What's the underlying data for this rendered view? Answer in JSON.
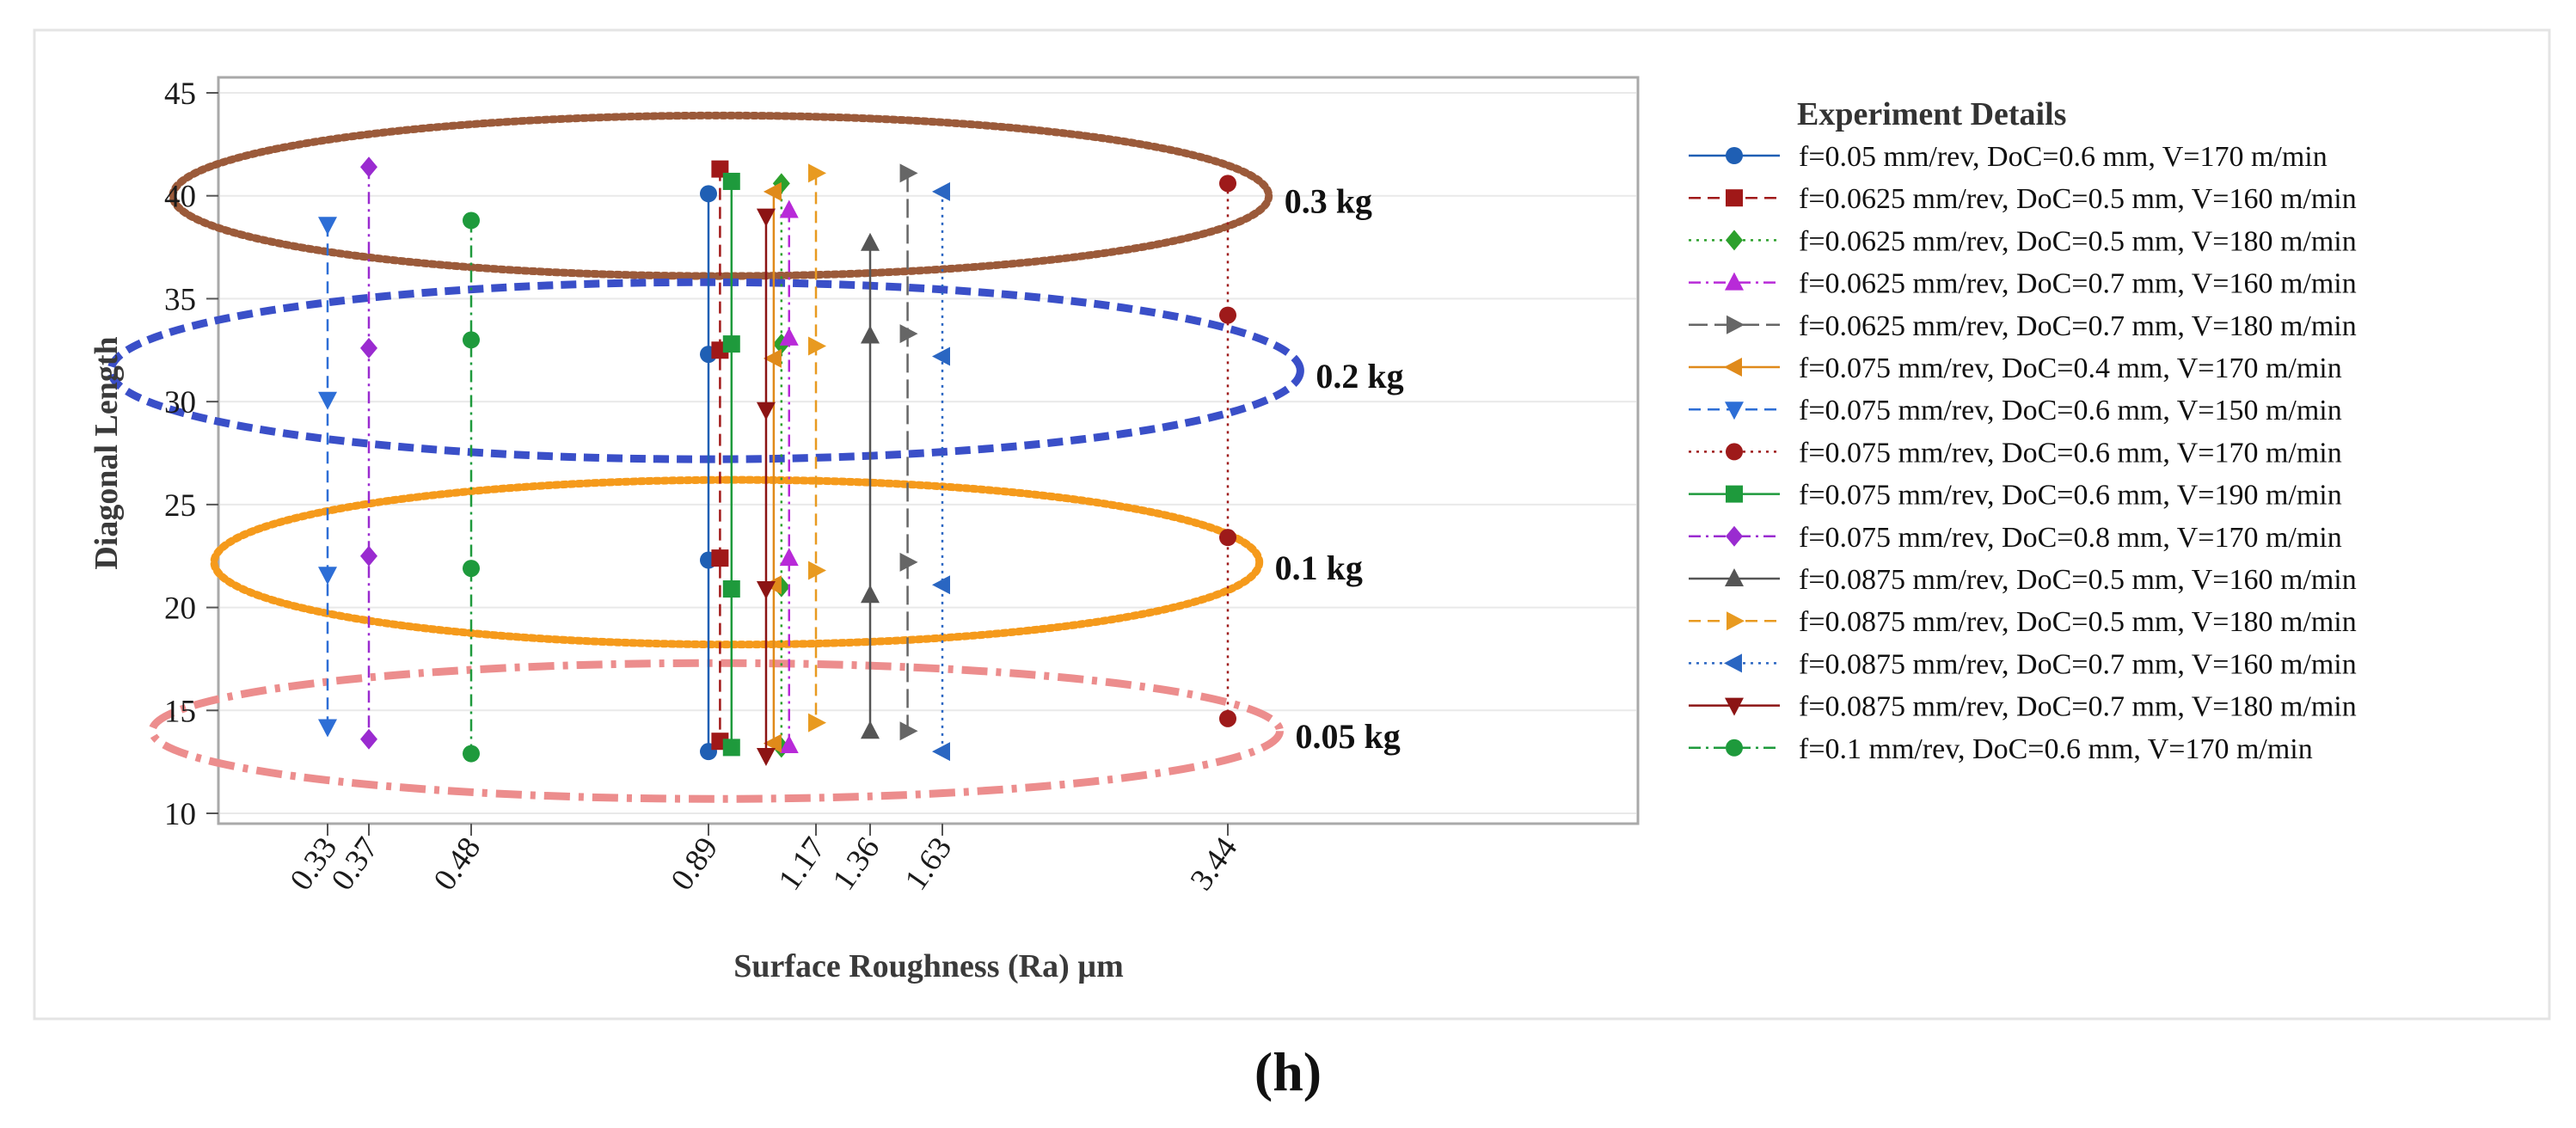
{
  "caption": "(h)",
  "chart_data": {
    "type": "scatter",
    "xlabel": "Surface Roughness (Ra) µm",
    "ylabel": "Diagonal Length",
    "ylim": [
      10,
      45
    ],
    "yticks": [
      10,
      15,
      20,
      25,
      30,
      35,
      40,
      45
    ],
    "xticks": [
      0.33,
      0.37,
      0.48,
      0.89,
      1.17,
      1.36,
      1.63,
      3.44
    ],
    "grid": true,
    "legend": {
      "title": "Experiment Details",
      "placement": "right"
    },
    "series": [
      {
        "name": "f=0.05 mm/rev, DoC=0.6 mm, V=170 m/min",
        "color": "#1f5fb4",
        "marker": "circle",
        "dash": "solid",
        "x": 0.89,
        "values": [
          13.0,
          22.3,
          32.3,
          40.1
        ]
      },
      {
        "name": "f=0.0625 mm/rev, DoC=0.5 mm, V=160 m/min",
        "color": "#a01818",
        "marker": "square",
        "dash": "dash",
        "x": 0.92,
        "values": [
          13.5,
          22.4,
          32.5,
          41.3
        ]
      },
      {
        "name": "f=0.0625 mm/rev, DoC=0.5 mm, V=180 m/min",
        "color": "#2ca02c",
        "marker": "diamond",
        "dash": "dot",
        "x": 1.08,
        "values": [
          13.2,
          21.0,
          32.8,
          40.6
        ]
      },
      {
        "name": "f=0.0625 mm/rev, DoC=0.7 mm, V=160 m/min",
        "color": "#b82ad8",
        "marker": "triangle-up",
        "dash": "dashdot",
        "x": 1.1,
        "values": [
          13.3,
          22.4,
          33.1,
          39.3
        ]
      },
      {
        "name": "f=0.0625 mm/rev, DoC=0.7 mm, V=180 m/min",
        "color": "#666666",
        "marker": "triangle-right",
        "dash": "longdash",
        "x": 1.5,
        "values": [
          14.0,
          22.2,
          33.3,
          41.1
        ]
      },
      {
        "name": "f=0.075 mm/rev, DoC=0.4 mm, V=170 m/min",
        "color": "#e08a1a",
        "marker": "triangle-left",
        "dash": "solid",
        "x": 1.06,
        "values": [
          13.4,
          21.1,
          32.1,
          40.2
        ]
      },
      {
        "name": "f=0.075 mm/rev, DoC=0.6 mm, V=150 m/min",
        "color": "#2d6ed6",
        "marker": "triangle-down",
        "dash": "dash",
        "x": 0.33,
        "values": [
          14.2,
          21.6,
          30.1,
          38.6
        ]
      },
      {
        "name": "f=0.075 mm/rev, DoC=0.6 mm, V=170 m/min",
        "color": "#9e1a1a",
        "marker": "circle",
        "dash": "dot",
        "x": 3.44,
        "values": [
          14.6,
          23.4,
          34.2,
          40.6
        ]
      },
      {
        "name": "f=0.075 mm/rev, DoC=0.6 mm, V=190 m/min",
        "color": "#1e9a3c",
        "marker": "square",
        "dash": "solid",
        "x": 0.95,
        "values": [
          13.2,
          20.9,
          32.8,
          40.7
        ]
      },
      {
        "name": "f=0.075 mm/rev, DoC=0.8 mm, V=170 m/min",
        "color": "#9a2bd0",
        "marker": "diamond",
        "dash": "dashdot",
        "x": 0.37,
        "values": [
          13.6,
          22.5,
          32.6,
          41.4
        ]
      },
      {
        "name": "f=0.0875 mm/rev, DoC=0.5 mm, V=160 m/min",
        "color": "#555555",
        "marker": "triangle-up",
        "dash": "solid",
        "x": 1.36,
        "values": [
          14.0,
          20.6,
          33.2,
          37.7
        ]
      },
      {
        "name": "f=0.0875 mm/rev, DoC=0.5 mm, V=180 m/min",
        "color": "#e89a20",
        "marker": "triangle-right",
        "dash": "dash",
        "x": 1.17,
        "values": [
          14.4,
          21.8,
          32.7,
          41.1
        ]
      },
      {
        "name": "f=0.0875 mm/rev, DoC=0.7 mm, V=160 m/min",
        "color": "#2a66c2",
        "marker": "triangle-left",
        "dash": "dot",
        "x": 1.63,
        "values": [
          13.0,
          21.1,
          32.2,
          40.2
        ]
      },
      {
        "name": "f=0.0875 mm/rev, DoC=0.7 mm, V=180 m/min",
        "color": "#8c1414",
        "marker": "triangle-down",
        "dash": "solid",
        "x": 1.04,
        "values": [
          12.8,
          20.9,
          29.6,
          39.0
        ]
      },
      {
        "name": "f=0.1 mm/rev, DoC=0.6 mm, V=170 m/min",
        "color": "#1e9a3c",
        "marker": "circle",
        "dash": "dashdot",
        "x": 0.48,
        "values": [
          12.9,
          21.9,
          33.0,
          38.8
        ]
      }
    ],
    "annotations": [
      {
        "label": "0.3 kg",
        "y_center": 40,
        "y_half_height": 3.9,
        "x_from": 0.18,
        "x_to": 3.7,
        "color": "#9b5a3a",
        "dash": "dot"
      },
      {
        "label": "0.2 kg",
        "y_center": 31.5,
        "y_half_height": 4.3,
        "x_from": 0.12,
        "x_to": 3.9,
        "color": "#3a4fc8",
        "dash": "dash"
      },
      {
        "label": "0.1 kg",
        "y_center": 22.2,
        "y_half_height": 4.0,
        "x_from": 0.22,
        "x_to": 3.64,
        "color": "#f59a1b",
        "dash": "dot"
      },
      {
        "label": "0.05 kg",
        "y_center": 14.0,
        "y_half_height": 3.3,
        "x_from": 0.16,
        "x_to": 3.77,
        "color": "#ec8d8d",
        "dash": "dashdot"
      }
    ]
  }
}
